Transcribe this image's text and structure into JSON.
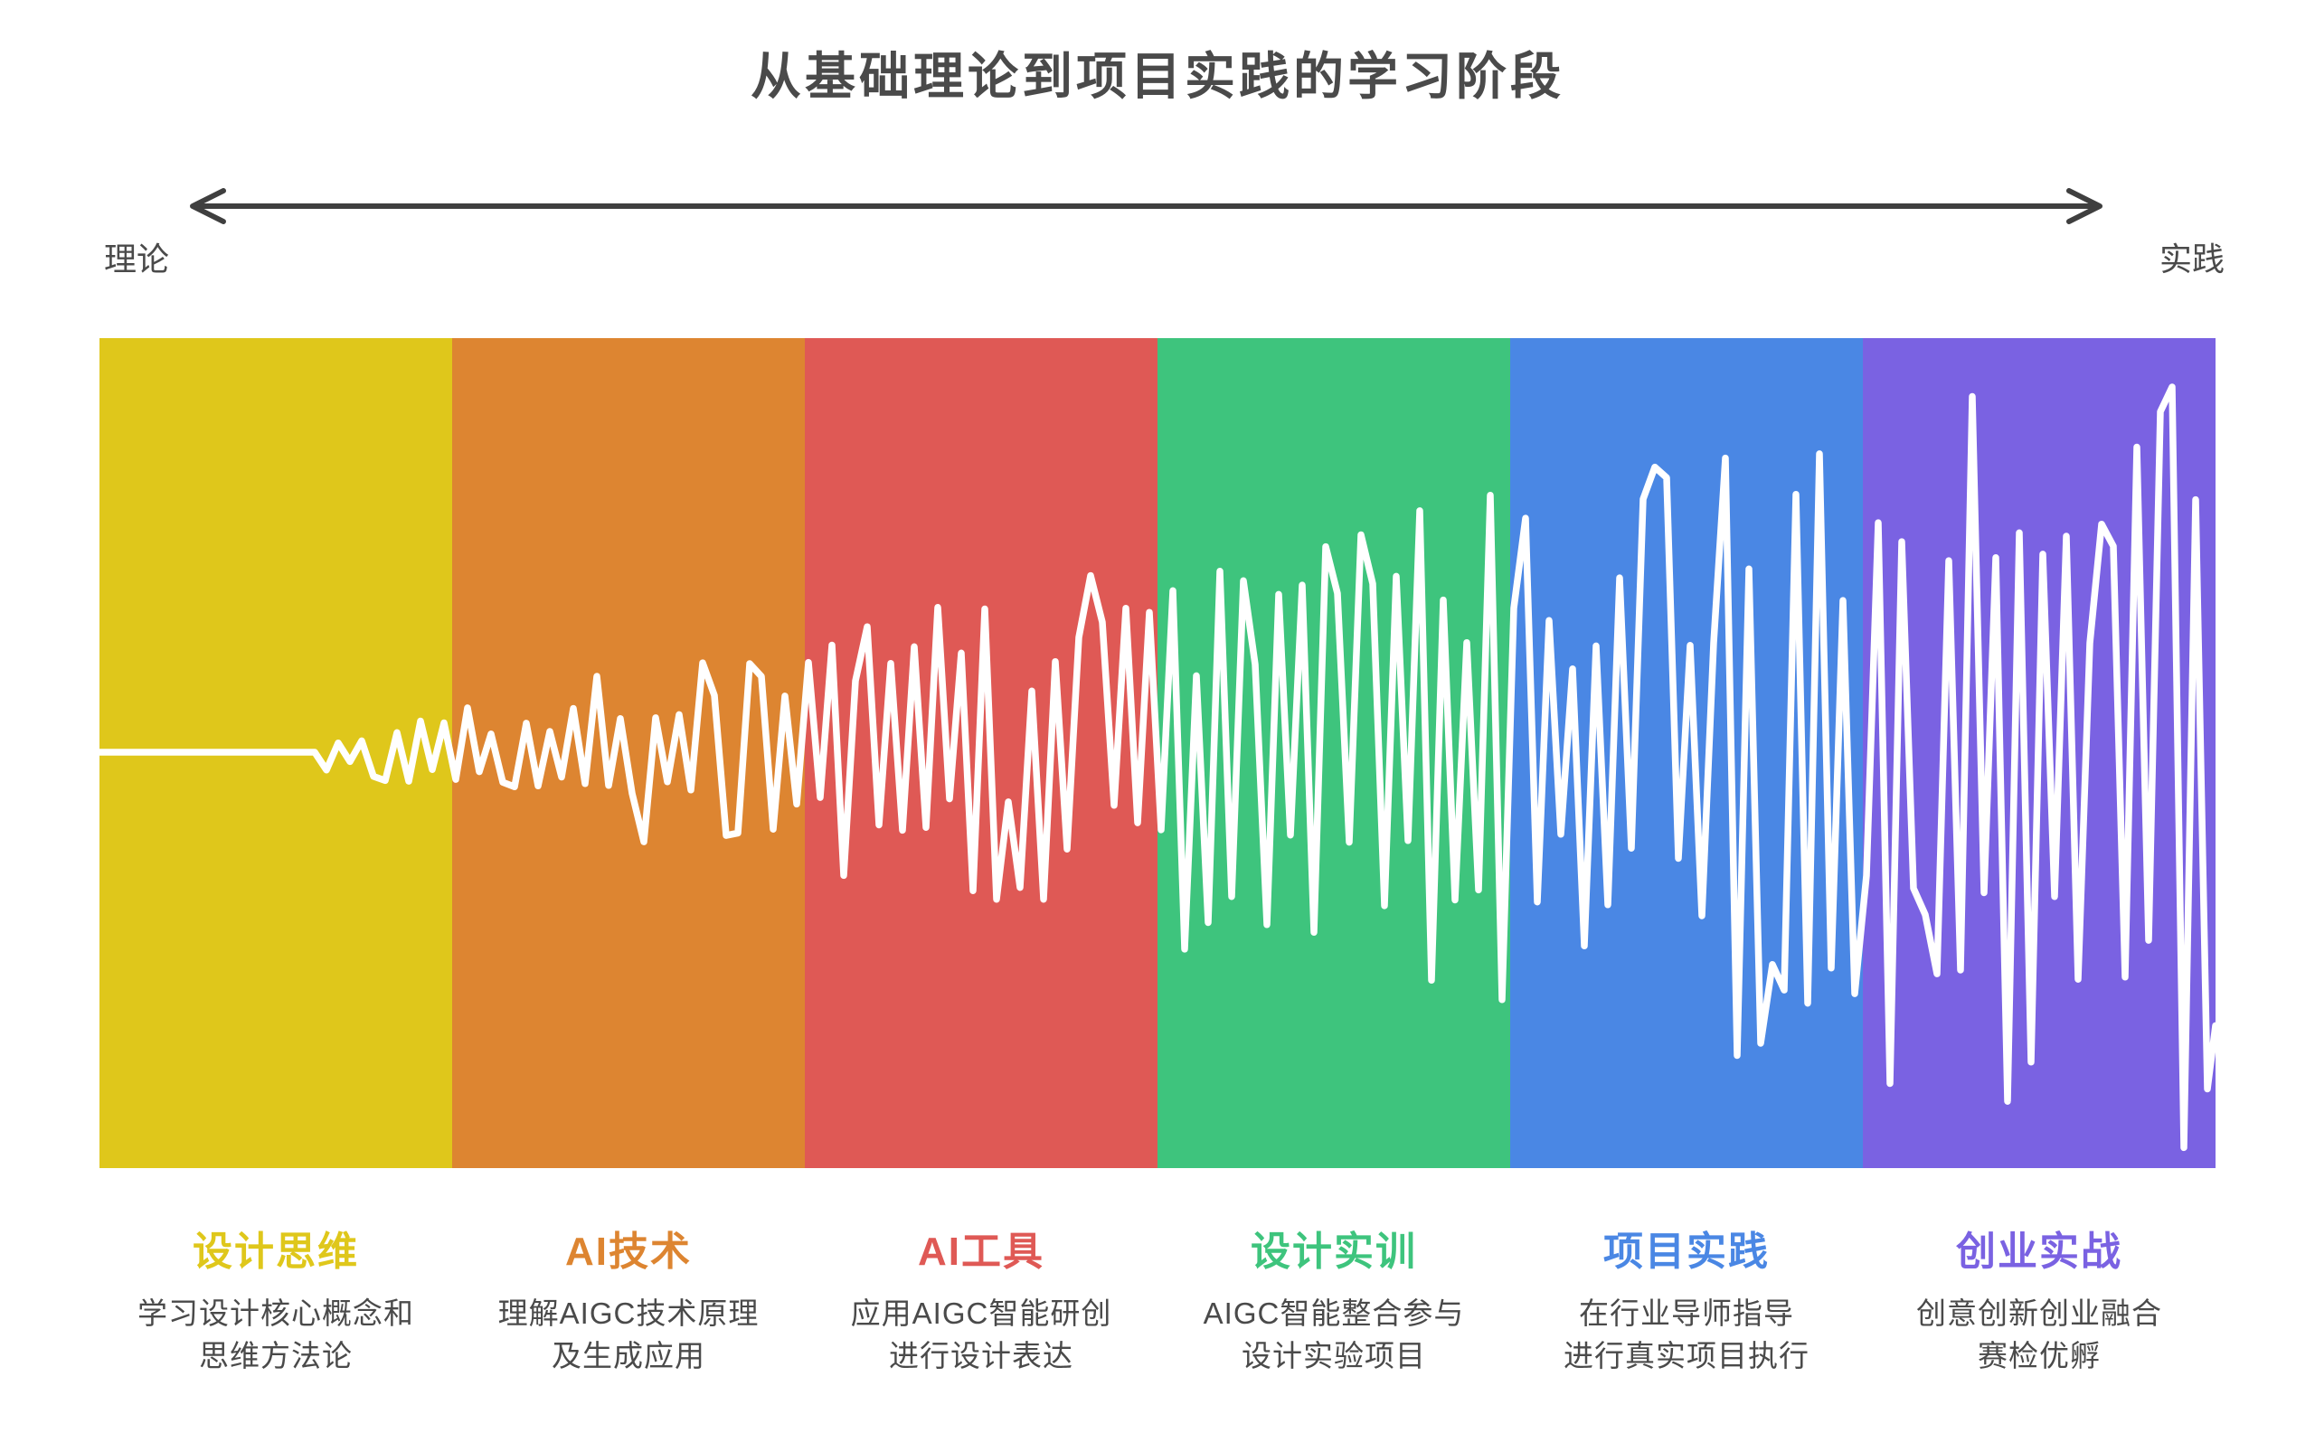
{
  "title": "从基础理论到项目实践的学习阶段",
  "axis": {
    "left_label": "理论",
    "right_label": "实践",
    "arrow_color": "#3f3f3f"
  },
  "stages": [
    {
      "title": "设计思维",
      "color": "#dfc71b",
      "description": "学习设计核心概念和\n思维方法论"
    },
    {
      "title": "AI技术",
      "color": "#dd8531",
      "description": "理解AIGC技术原理\n及生成应用"
    },
    {
      "title": "AI工具",
      "color": "#df5955",
      "description": "应用AIGC智能研创\n进行设计表达"
    },
    {
      "title": "设计实训",
      "color": "#3ec47d",
      "description": "AIGC智能整合参与\n设计实验项目"
    },
    {
      "title": "项目实践",
      "color": "#4a87e4",
      "description": "在行业导师指导\n进行真实项目执行"
    },
    {
      "title": "创业实战",
      "color": "#7a62e2",
      "description": "创意创新创业融合\n赛检优孵"
    }
  ],
  "wave": {
    "color": "#ffffff",
    "stroke_width": 7.5,
    "seed": 13,
    "baseline": 458,
    "flat_until": 238,
    "step": 13,
    "amp_start": 26,
    "amp_end": 450,
    "alternate_prob": 0.85,
    "min_factor": 0.28
  },
  "text_color": "#4a4a4a"
}
